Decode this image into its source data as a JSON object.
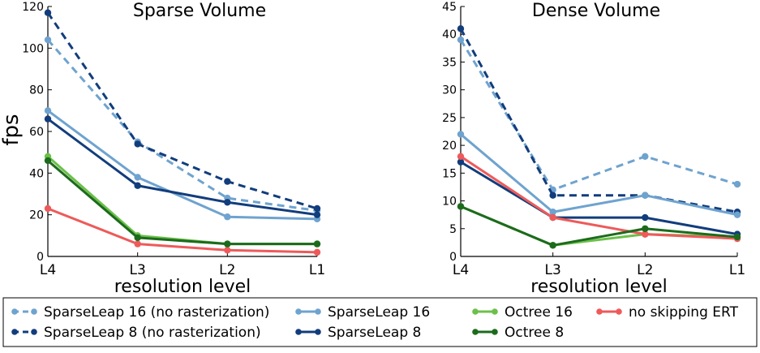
{
  "figure": {
    "ylabel": "fps",
    "legend_placement": "bottom",
    "legend": [
      {
        "label": "SparseLeap 16 (no rasterization)",
        "color": "#6fa3cf",
        "style": "dashed"
      },
      {
        "label": "SparseLeap 16",
        "color": "#6fa3cf",
        "style": "solid"
      },
      {
        "label": "Octree 16",
        "color": "#6cc04a",
        "style": "solid"
      },
      {
        "label": "no skipping ERT",
        "color": "#ee5a5a",
        "style": "solid"
      },
      {
        "label": "SparseLeap 8 (no rasterization)",
        "color": "#123d7c",
        "style": "dashed"
      },
      {
        "label": "SparseLeap 8",
        "color": "#123d7c",
        "style": "solid"
      },
      {
        "label": "Octree 8",
        "color": "#1c6b1c",
        "style": "solid"
      }
    ]
  },
  "chart_data": [
    {
      "type": "line",
      "title": "Sparse Volume",
      "xlabel": "resolution level",
      "ylabel": "fps",
      "categories": [
        "L4",
        "L3",
        "L2",
        "L1"
      ],
      "ylim": [
        0,
        120
      ],
      "yticks": [
        0,
        20,
        40,
        60,
        80,
        100,
        120
      ],
      "grid": false,
      "series": [
        {
          "name": "SparseLeap 16 (no rasterization)",
          "color": "#6fa3cf",
          "style": "dashed",
          "values": [
            104,
            55,
            28,
            22
          ]
        },
        {
          "name": "SparseLeap 8 (no rasterization)",
          "color": "#123d7c",
          "style": "dashed",
          "values": [
            117,
            54,
            36,
            23
          ]
        },
        {
          "name": "SparseLeap 16",
          "color": "#6fa3cf",
          "style": "solid",
          "values": [
            70,
            38,
            19,
            18
          ]
        },
        {
          "name": "SparseLeap 8",
          "color": "#123d7c",
          "style": "solid",
          "values": [
            66,
            34,
            26,
            20
          ]
        },
        {
          "name": "Octree 16",
          "color": "#6cc04a",
          "style": "solid",
          "values": [
            48,
            10,
            6,
            6
          ]
        },
        {
          "name": "no skipping ERT",
          "color": "#ee5a5a",
          "style": "solid",
          "values": [
            23,
            6,
            3,
            2
          ]
        },
        {
          "name": "Octree 8",
          "color": "#1c6b1c",
          "style": "solid",
          "values": [
            46,
            9,
            6,
            6
          ]
        }
      ]
    },
    {
      "type": "line",
      "title": "Dense Volume",
      "xlabel": "resolution level",
      "ylabel": "",
      "categories": [
        "L4",
        "L3",
        "L2",
        "L1"
      ],
      "ylim": [
        0,
        45
      ],
      "yticks": [
        0,
        5,
        10,
        15,
        20,
        25,
        30,
        35,
        40,
        45
      ],
      "grid": false,
      "series": [
        {
          "name": "SparseLeap 16 (no rasterization)",
          "color": "#6fa3cf",
          "style": "dashed",
          "values": [
            39,
            12,
            18,
            13
          ]
        },
        {
          "name": "SparseLeap 8 (no rasterization)",
          "color": "#123d7c",
          "style": "dashed",
          "values": [
            41,
            11,
            11,
            8
          ]
        },
        {
          "name": "SparseLeap 16",
          "color": "#6fa3cf",
          "style": "solid",
          "values": [
            22,
            8,
            11,
            7.5
          ]
        },
        {
          "name": "SparseLeap 8",
          "color": "#123d7c",
          "style": "solid",
          "values": [
            17,
            7,
            7,
            4
          ]
        },
        {
          "name": "Octree 16",
          "color": "#6cc04a",
          "style": "solid",
          "values": [
            9,
            2,
            4,
            3.5
          ]
        },
        {
          "name": "no skipping ERT",
          "color": "#ee5a5a",
          "style": "solid",
          "values": [
            18,
            7,
            4,
            3.2
          ]
        },
        {
          "name": "Octree 8",
          "color": "#1c6b1c",
          "style": "solid",
          "values": [
            9,
            2,
            5,
            3.5
          ]
        }
      ]
    }
  ]
}
